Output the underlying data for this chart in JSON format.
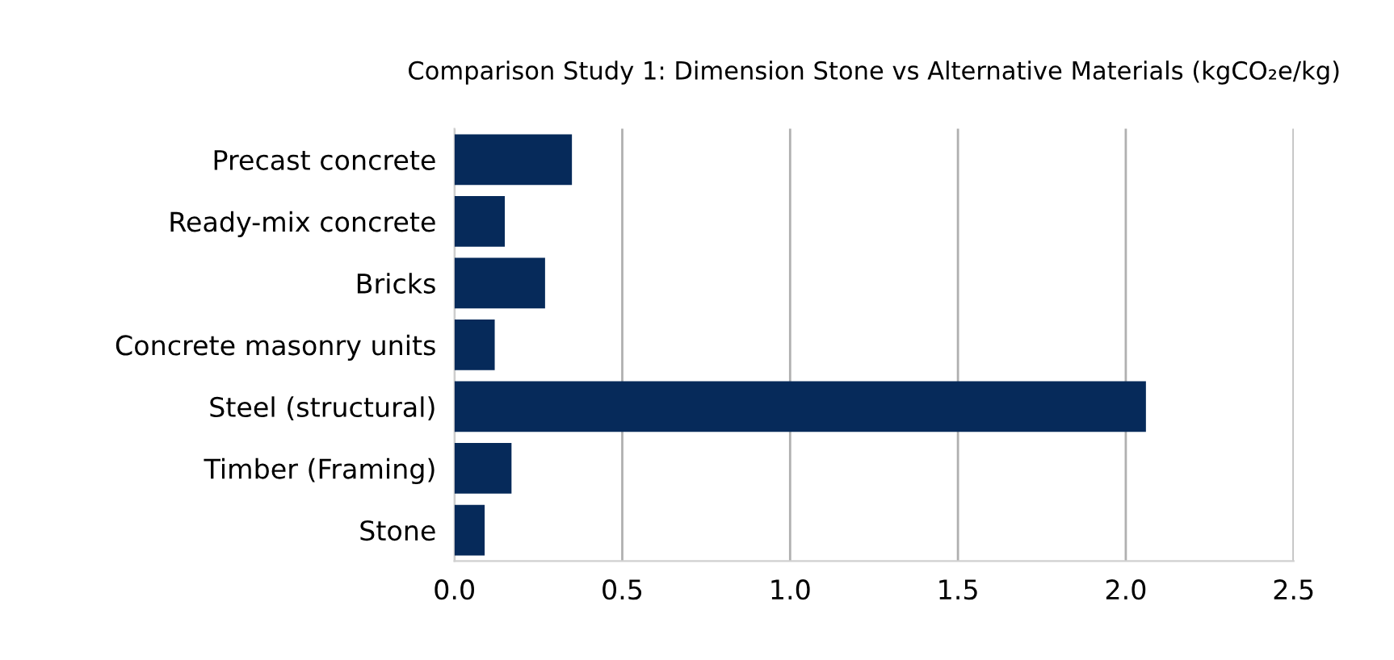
{
  "chart_data": {
    "type": "bar",
    "orientation": "horizontal",
    "title": "Comparison Study 1: Dimension Stone vs Alternative Materials (kgCO₂e/kg)",
    "categories": [
      "Precast concrete",
      "Ready-mix concrete",
      "Bricks",
      "Concrete masonry units",
      "Steel (structural)",
      "Timber (Framing)",
      "Stone"
    ],
    "values": [
      0.35,
      0.15,
      0.27,
      0.12,
      2.06,
      0.17,
      0.09
    ],
    "color": "#062a5a",
    "xlim": [
      0,
      2.5
    ],
    "xticks": [
      {
        "value": 0,
        "label": "0.0"
      },
      0.5,
      {
        "value": 1,
        "label": "1.0"
      },
      1.5,
      {
        "value": 2,
        "label": "2.0"
      },
      2.5
    ],
    "grid": "x"
  }
}
